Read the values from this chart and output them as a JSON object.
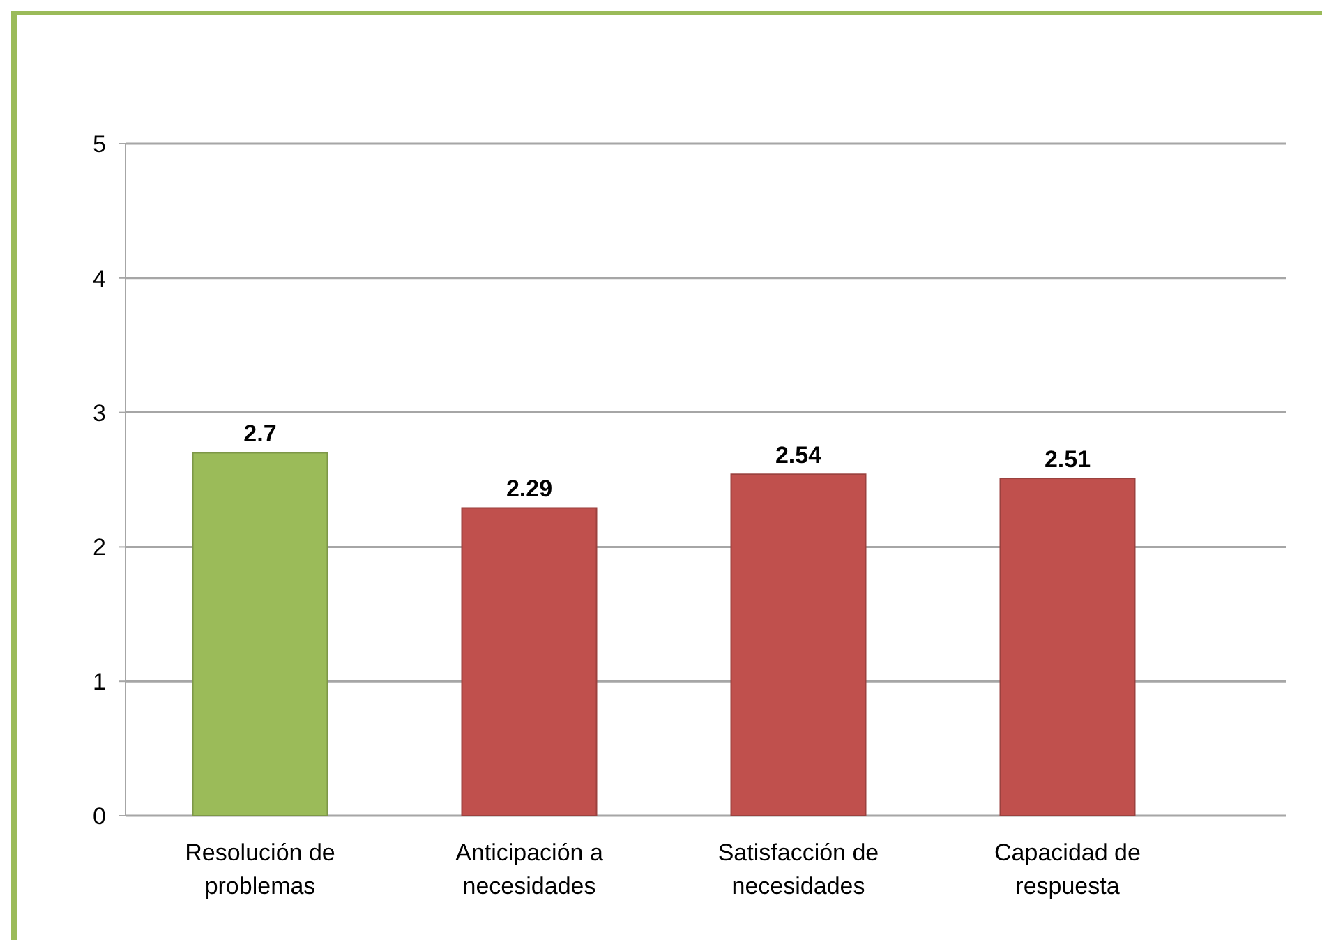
{
  "chart_data": {
    "type": "bar",
    "categories": [
      "Resolución de problemas",
      "Anticipación a necesidades",
      "Satisfacción de necesidades",
      "Capacidad de respuesta"
    ],
    "values": [
      2.7,
      2.29,
      2.54,
      2.51
    ],
    "colors": [
      "#9bbb59",
      "#c0504d",
      "#c0504d",
      "#c0504d"
    ],
    "ylim": [
      0,
      5
    ],
    "yticks": [
      0,
      1,
      2,
      3,
      4,
      5
    ],
    "grid": "y",
    "data_labels": true
  }
}
